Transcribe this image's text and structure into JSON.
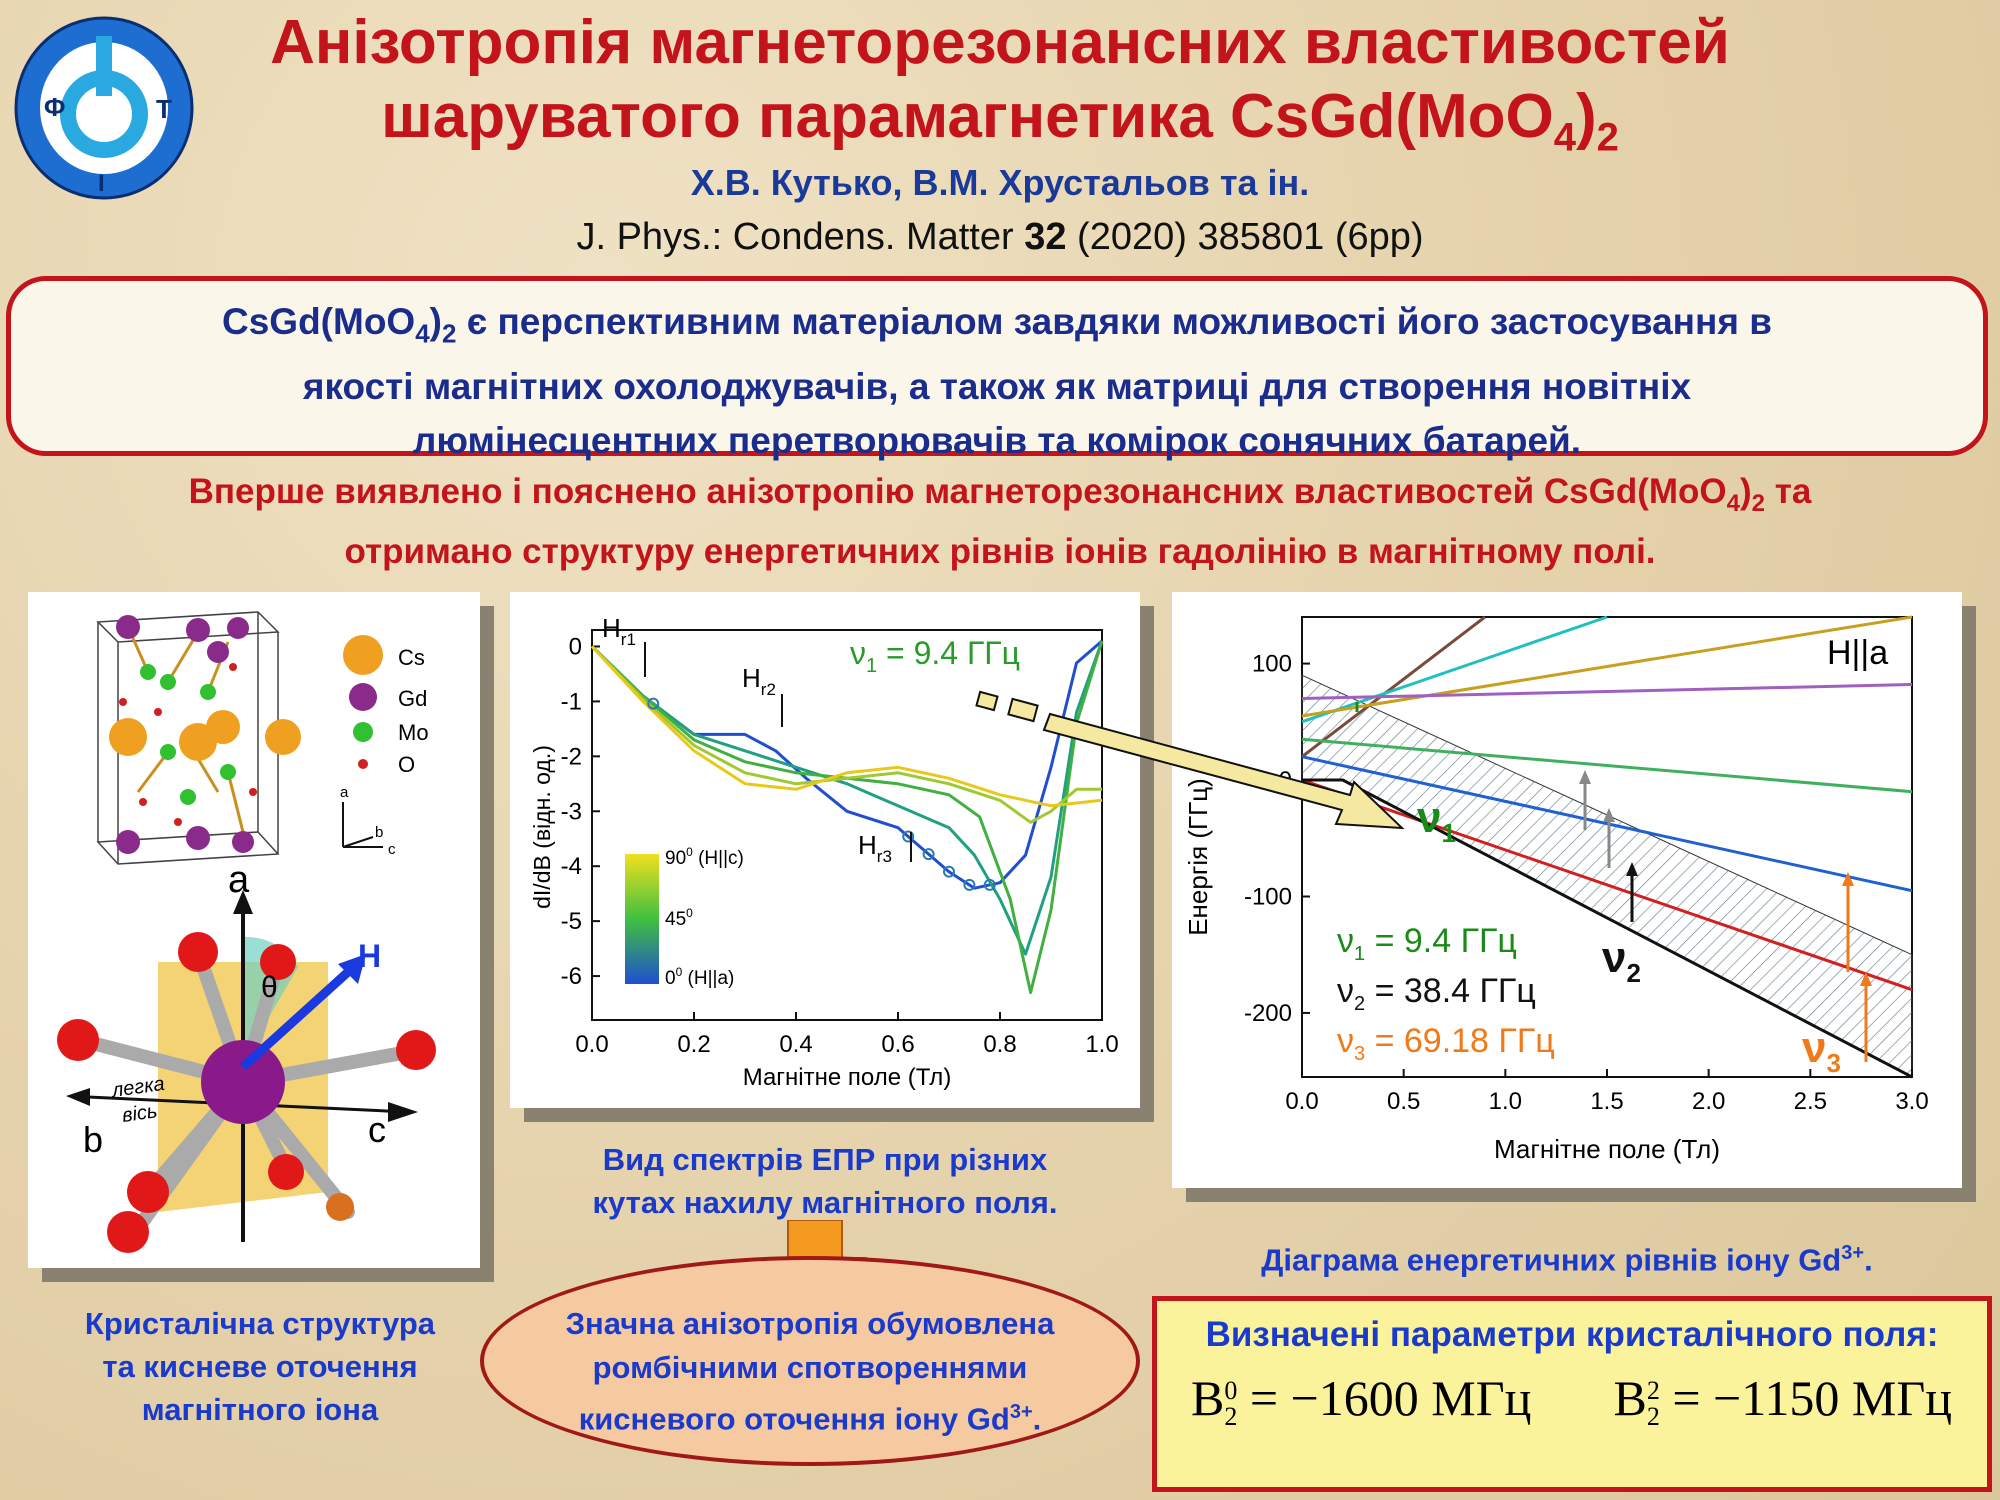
{
  "title": {
    "line1": "Анізотропія магнеторезонансних властивостей",
    "line2_prefix": "шаруватого парамагнетика CsGd(MoO",
    "line2_sub": "4",
    "line2_close": ")",
    "line2_sub2": "2"
  },
  "authors": "Х.В. Кутько, В.М. Хрустальов та ін.",
  "journal": {
    "prefix": "J. Phys.: Condens. Matter ",
    "volume": "32",
    "rest": " (2020) 385801 (6pp)"
  },
  "intro": {
    "line1_prefix": "CsGd(MoO",
    "line1_sub": "4",
    "line1_close": ")",
    "line1_sub2": "2",
    "line1_rest": " є перспективним матеріалом завдяки можливості його застосування в",
    "line2": "якості магнітних охолоджувачів, а також як матриці для створення новітніх",
    "line3": "люмінесцентних перетворювачів та комірок сонячних батарей."
  },
  "finding": {
    "line1_prefix": "Вперше виявлено і пояснено анізотропію магнеторезонансних властивостей CsGd(MoO",
    "line1_sub": "4",
    "line1_close": ")",
    "line1_sub2": "2",
    "line1_rest": " та",
    "line2": "отримано структуру енергетичних рівнів іонів гадолінію в магнітному полі."
  },
  "crystal": {
    "legend": [
      "Cs",
      "Gd",
      "Mo",
      "O"
    ],
    "axes_small": {
      "a": "a",
      "b": "b",
      "c": "c"
    },
    "axes_big": {
      "a": "a",
      "b": "b",
      "c": "c"
    },
    "theta": "θ",
    "H": "H",
    "easy_axis1": "легка",
    "easy_axis2": "вісь"
  },
  "caption_crystal": [
    "Кристалічна структура",
    "та кисневе оточення",
    "магнітного іона"
  ],
  "epr": {
    "freq_label": "ν",
    "freq_sub": "1",
    "freq_value": " = 9.4 ГГц",
    "ylabel": "dI/dB (відн. од.)",
    "xlabel": "Магнітне поле (Тл)",
    "hr1": "H",
    "hr1_sub": "r1",
    "hr2": "H",
    "hr2_sub": "r2",
    "hr3": "H",
    "hr3_sub": "r3",
    "colorbar": {
      "top": "90",
      "top_rest": " (H||c)",
      "mid": "45",
      "bottom": "0",
      "bottom_rest": "  (H||a)",
      "deg": "0"
    }
  },
  "caption_epr": [
    "Вид спектрів ЕПР при різних",
    "кутах нахилу магнітного поля."
  ],
  "ellipse_text": {
    "line1": "Значна анізотропія обумовлена",
    "line2": "ромбічними спотвореннями",
    "line3_prefix": "кисневого оточення іону Gd",
    "line3_sup": "3+",
    "line3_end": "."
  },
  "energy": {
    "label": "H||a",
    "ylabel": "Енергія (ГГц)",
    "xlabel": "Магнітне поле (Тл)",
    "legend": [
      {
        "sym": "ν",
        "sub": "1",
        "text": " = 9.4 ГГц",
        "color": "#1a8a1a"
      },
      {
        "sym": "ν",
        "sub": "2",
        "text": " = 38.4 ГГц",
        "color": "#111111"
      },
      {
        "sym": "ν",
        "sub": "3",
        "text": " = 69.18 ГГц",
        "color": "#f07a1a"
      }
    ],
    "nu_labels": {
      "n1": "ν",
      "n1_sub": "1",
      "n2": "ν",
      "n2_sub": "2",
      "n3": "ν",
      "n3_sub": "3"
    }
  },
  "caption_energy": {
    "prefix": "Діаграма енергетичних рівнів іону Gd",
    "sup": "3+",
    "end": "."
  },
  "params": {
    "title": "Визначені параметри кристалічного поля:",
    "b1_B": "B",
    "b1_sup": "0",
    "b1_sub": "2",
    "b1_val": " = −1600 МГц",
    "b2_B": "B",
    "b2_sup": "2",
    "b2_sub": "2",
    "b2_val": " = −1150 МГц"
  },
  "chart_data": [
    {
      "type": "line",
      "title": "",
      "xlabel": "Магнітне поле (Тл)",
      "ylabel": "dI/dB (відн. од.)",
      "xlim": [
        0,
        1.0
      ],
      "ylim": [
        -6.8,
        0.3
      ],
      "xticks": [
        "0.0",
        "0.2",
        "0.4",
        "0.6",
        "0.8",
        "1.0"
      ],
      "yticks": [
        "0",
        "-1",
        "-2",
        "-3",
        "-4",
        "-5",
        "-6"
      ],
      "series": [
        {
          "angle_deg": 0,
          "color": "#1f4fd0",
          "x": [
            0,
            0.1,
            0.2,
            0.3,
            0.36,
            0.42,
            0.5,
            0.6,
            0.7,
            0.75,
            0.8,
            0.85,
            0.9,
            0.95,
            1.0
          ],
          "y": [
            0,
            -0.9,
            -1.6,
            -1.6,
            -1.9,
            -2.4,
            -3.0,
            -3.3,
            -4.1,
            -4.4,
            -4.3,
            -3.8,
            -2.2,
            -0.3,
            0.1
          ]
        },
        {
          "angle_deg": 30,
          "color": "#20a080",
          "x": [
            0,
            0.1,
            0.2,
            0.3,
            0.4,
            0.5,
            0.6,
            0.7,
            0.75,
            0.8,
            0.85,
            0.9,
            0.95,
            1.0
          ],
          "y": [
            0,
            -0.9,
            -1.6,
            -1.9,
            -2.2,
            -2.5,
            -2.9,
            -3.3,
            -3.8,
            -4.6,
            -5.6,
            -4.2,
            -1.2,
            0.1
          ]
        },
        {
          "angle_deg": 50,
          "color": "#40b040",
          "x": [
            0,
            0.1,
            0.2,
            0.3,
            0.4,
            0.5,
            0.6,
            0.7,
            0.76,
            0.82,
            0.86,
            0.9,
            0.95,
            1.0
          ],
          "y": [
            0,
            -0.9,
            -1.7,
            -2.1,
            -2.3,
            -2.4,
            -2.5,
            -2.7,
            -3.1,
            -4.6,
            -6.3,
            -4.8,
            -1.4,
            0.1
          ]
        },
        {
          "angle_deg": 70,
          "color": "#a0c830",
          "x": [
            0,
            0.1,
            0.2,
            0.3,
            0.4,
            0.5,
            0.6,
            0.7,
            0.8,
            0.86,
            0.9,
            0.95,
            1.0
          ],
          "y": [
            0,
            -0.95,
            -1.8,
            -2.3,
            -2.5,
            -2.4,
            -2.3,
            -2.5,
            -2.8,
            -3.2,
            -3.0,
            -2.6,
            -2.6
          ]
        },
        {
          "angle_deg": 90,
          "color": "#e8c81a",
          "x": [
            0,
            0.1,
            0.2,
            0.3,
            0.4,
            0.5,
            0.6,
            0.7,
            0.8,
            0.9,
            1.0
          ],
          "y": [
            0,
            -1.0,
            -1.9,
            -2.5,
            -2.6,
            -2.3,
            -2.2,
            -2.4,
            -2.7,
            -2.9,
            -2.8
          ]
        }
      ]
    },
    {
      "type": "line",
      "title": "",
      "xlabel": "Магнітне поле (Тл)",
      "ylabel": "Енергія (ГГц)",
      "xlim": [
        0,
        3.0
      ],
      "ylim": [
        -255,
        140
      ],
      "xticks": [
        "0.0",
        "0.5",
        "1.0",
        "1.5",
        "2.0",
        "2.5",
        "3.0"
      ],
      "yticks": [
        "100",
        "0",
        "-100",
        "-200"
      ],
      "series": [
        {
          "color": "#7a4a3a",
          "x": [
            0,
            0.9
          ],
          "y": [
            20,
            140
          ]
        },
        {
          "color": "#20c0c0",
          "x": [
            0,
            1.5
          ],
          "y": [
            50,
            140
          ]
        },
        {
          "color": "#c8a020",
          "x": [
            0,
            3.0
          ],
          "y": [
            55,
            145
          ]
        },
        {
          "color": "#a060c0",
          "x": [
            0,
            3.0
          ],
          "y": [
            70,
            82
          ]
        },
        {
          "color": "#40b060",
          "x": [
            0,
            3.0
          ],
          "y": [
            35,
            -10
          ]
        },
        {
          "color": "#2060d0",
          "x": [
            0,
            3.0
          ],
          "y": [
            20,
            -95
          ]
        },
        {
          "color": "#d02020",
          "x": [
            0,
            3.0
          ],
          "y": [
            0,
            -180
          ]
        },
        {
          "color": "#111111",
          "x": [
            0,
            0.2,
            3.0
          ],
          "y": [
            0,
            0,
            -255
          ]
        }
      ]
    }
  ]
}
